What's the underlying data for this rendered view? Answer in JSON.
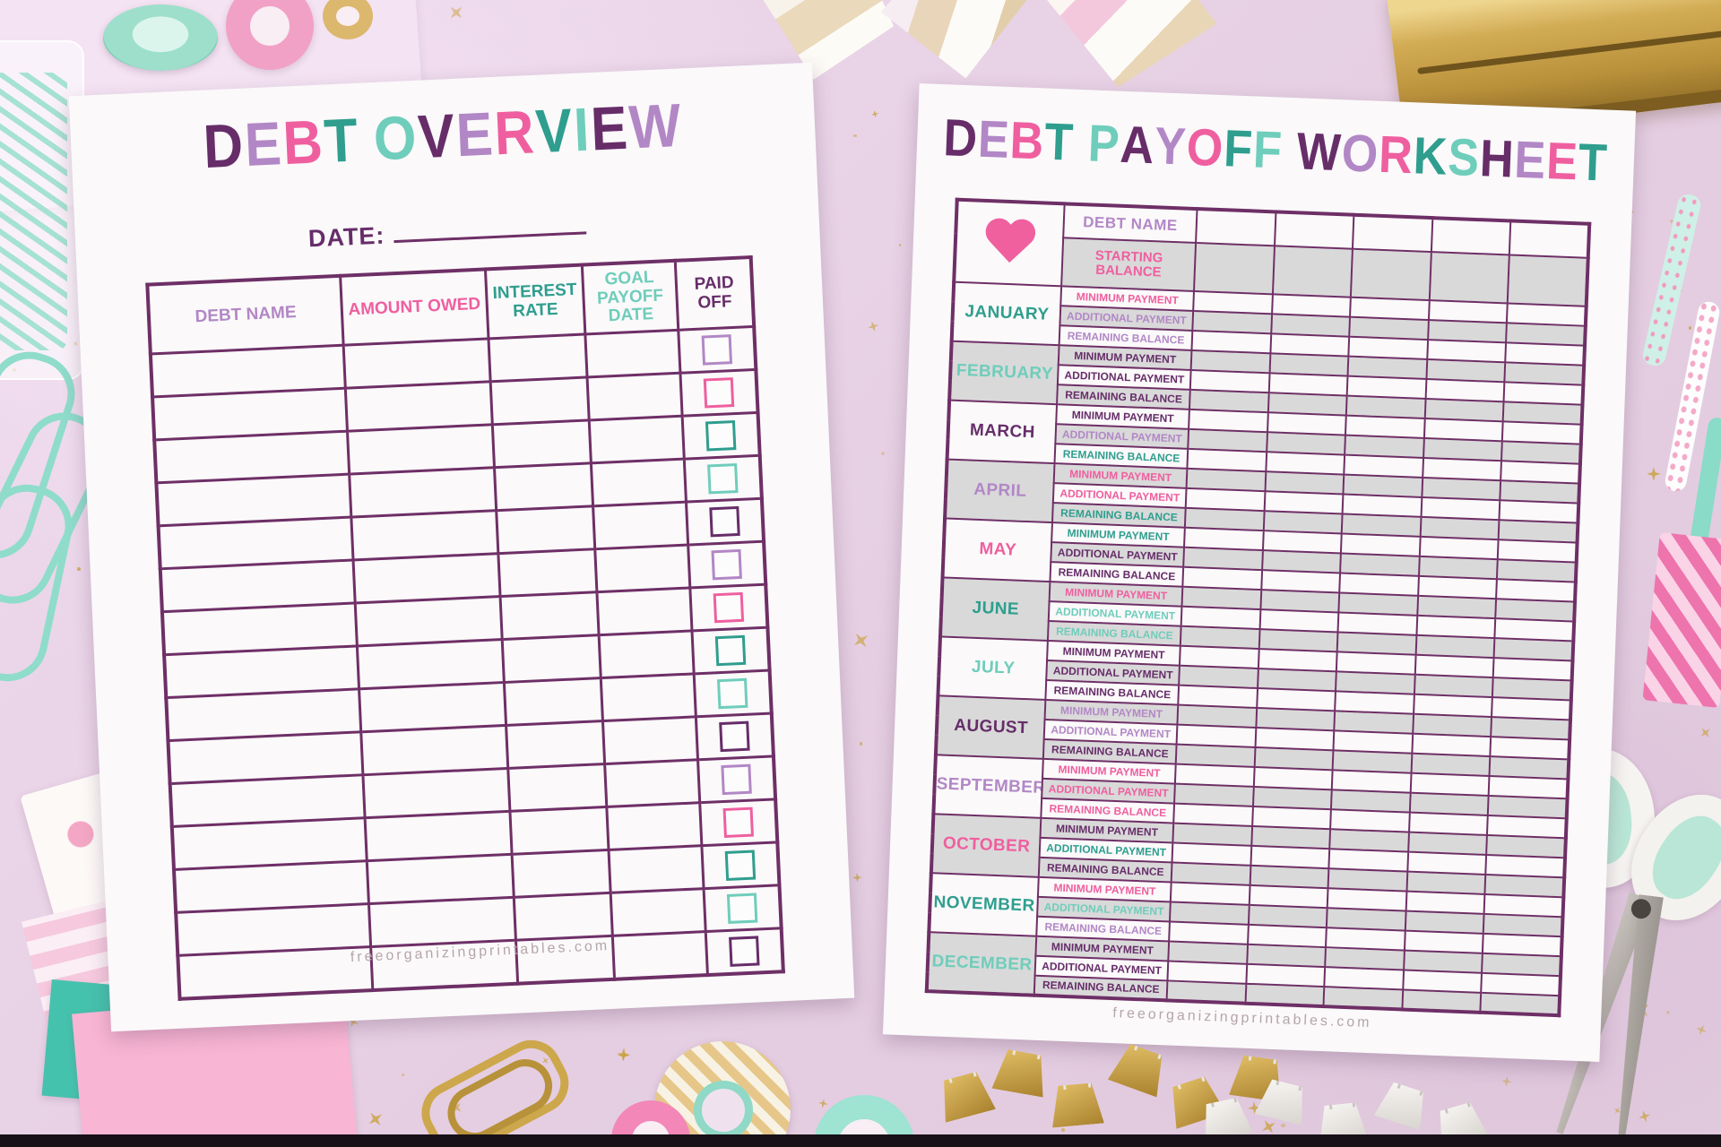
{
  "palette": {
    "purple": "#662d69",
    "lilac": "#b287c6",
    "pink": "#ef5f9f",
    "teal": "#2f9e8e",
    "mint": "#6fcdbb",
    "table_border": "#6e2f66",
    "row_gray": "#d9d9d9",
    "heart_pink": "#f0609e",
    "star_gold": "#c9a242"
  },
  "title_color_cycle": [
    "purple",
    "lilac",
    "pink",
    "teal",
    "mint"
  ],
  "left_sheet": {
    "title": "DEBT OVERVIEW",
    "date_label": "DATE:",
    "columns": [
      {
        "label": "DEBT NAME",
        "color": "lilac"
      },
      {
        "label": "AMOUNT OWED",
        "color": "pink"
      },
      {
        "label": "INTEREST RATE",
        "color": "teal"
      },
      {
        "label": "GOAL PAYOFF DATE",
        "color": "mint"
      },
      {
        "label": "PAID OFF",
        "color": "purple"
      }
    ],
    "row_count": 15,
    "checkbox_color_cycle": [
      "lilac",
      "pink",
      "teal",
      "mint",
      "purple"
    ],
    "footer": "freeorganizingprintables.com"
  },
  "right_sheet": {
    "title": "DEBT PAYOFF WORKSHEET",
    "heart_icon": "heart-icon",
    "debt_name_label": "DEBT NAME",
    "debt_name_color": "lilac",
    "starting_balance_label": "STARTING BALANCE",
    "starting_balance_color": "pink",
    "data_column_count": 5,
    "month_row_labels": [
      "MINIMUM PAYMENT",
      "ADDITIONAL PAYMENT",
      "REMAINING BALANCE"
    ],
    "months": [
      {
        "name": "JANUARY",
        "color": "teal",
        "row_colors": [
          "pink",
          "lilac",
          "lilac"
        ]
      },
      {
        "name": "FEBRUARY",
        "color": "mint",
        "row_colors": [
          "purple",
          "purple",
          "purple"
        ]
      },
      {
        "name": "MARCH",
        "color": "purple",
        "row_colors": [
          "purple",
          "lilac",
          "teal"
        ]
      },
      {
        "name": "APRIL",
        "color": "lilac",
        "row_colors": [
          "pink",
          "pink",
          "teal"
        ]
      },
      {
        "name": "MAY",
        "color": "pink",
        "row_colors": [
          "teal",
          "purple",
          "purple"
        ]
      },
      {
        "name": "JUNE",
        "color": "teal",
        "row_colors": [
          "pink",
          "mint",
          "mint"
        ]
      },
      {
        "name": "JULY",
        "color": "mint",
        "row_colors": [
          "purple",
          "purple",
          "purple"
        ]
      },
      {
        "name": "AUGUST",
        "color": "purple",
        "row_colors": [
          "lilac",
          "lilac",
          "purple"
        ]
      },
      {
        "name": "SEPTEMBER",
        "color": "lilac",
        "row_colors": [
          "pink",
          "pink",
          "pink"
        ]
      },
      {
        "name": "OCTOBER",
        "color": "pink",
        "row_colors": [
          "purple",
          "teal",
          "purple"
        ]
      },
      {
        "name": "NOVEMBER",
        "color": "teal",
        "row_colors": [
          "pink",
          "mint",
          "lilac"
        ]
      },
      {
        "name": "DECEMBER",
        "color": "mint",
        "row_colors": [
          "purple",
          "purple",
          "purple"
        ]
      }
    ],
    "footer": "freeorganizingprintables.com"
  },
  "scene": {
    "decor": [
      "paper-tissue-topleft",
      "jar-lid",
      "washi-tape-pink",
      "washi-tape-gold-small",
      "pen-mint",
      "pen-pink",
      "pen-white",
      "paper-gem-left",
      "paper-gem-right",
      "paper-gem-pink",
      "stapler-gold",
      "straw-mint-dotted",
      "straw-white-floral",
      "straw-mint-solid",
      "ribbon-pink",
      "jar-clips",
      "paperclips-mint",
      "notepad-floral",
      "paper-pink-striped",
      "note-teal",
      "note-pink",
      "paperclip-gold",
      "washi-roll-mint-gold",
      "washi-roll-pink",
      "washi-roll-mint",
      "binder-clips-gold",
      "binder-clips-white",
      "scissors",
      "bottom-bar"
    ]
  }
}
